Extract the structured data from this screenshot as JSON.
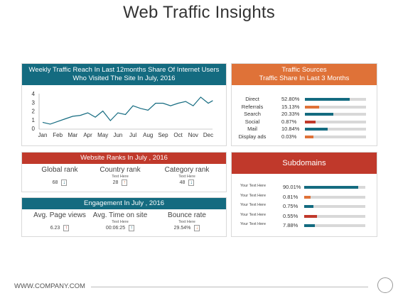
{
  "page": {
    "title": "Web Traffic Insights",
    "footer": "WWW.COMPANY.COM"
  },
  "colors": {
    "teal": "#146b80",
    "red": "#c0392b",
    "orange": "#df7238",
    "track": "#d8d8d8"
  },
  "weekly": {
    "header_line1": "Weekly Traffic Reach In Last 12months Share Of Internet Users",
    "header_line2": "Who Visited The Site In July, 2016"
  },
  "chart_data": {
    "type": "line",
    "categories": [
      "Jan",
      "Feb",
      "Mar",
      "Apr",
      "May",
      "Jun",
      "Jul",
      "Aug",
      "Sep",
      "Oct",
      "Nov",
      "Dec"
    ],
    "x": [
      0,
      0.5,
      1,
      1.5,
      2,
      2.5,
      3,
      3.5,
      4,
      4.5,
      5,
      5.5,
      6,
      6.5,
      7,
      7.5,
      8,
      8.5,
      9,
      9.5,
      10,
      10.5,
      11,
      11.3
    ],
    "values": [
      0.7,
      0.5,
      0.8,
      1.1,
      1.4,
      1.5,
      1.8,
      1.3,
      2.0,
      0.9,
      1.8,
      1.6,
      2.6,
      2.3,
      2.1,
      2.9,
      2.9,
      2.6,
      2.9,
      3.1,
      2.6,
      3.6,
      2.9,
      3.2
    ],
    "ylim": [
      0,
      4
    ],
    "yticks": [
      "0",
      "1",
      "2",
      "3",
      "4"
    ],
    "title": "",
    "xlabel": "",
    "ylabel": "",
    "grid": false
  },
  "ranks": {
    "header": "Website Ranks In July , 2016",
    "items": [
      {
        "label": "Global rank",
        "note": "",
        "value": "68",
        "arrow": "down"
      },
      {
        "label": "Country rank",
        "note": "Text Here",
        "value": "28",
        "arrow": "up"
      },
      {
        "label": "Category rank",
        "note": "Text Here",
        "value": "48",
        "arrow": "down"
      }
    ]
  },
  "engagement": {
    "header": "Engagement In July , 2016",
    "items": [
      {
        "label": "Avg. Page views",
        "note": "",
        "value": "6.23",
        "arrow": "up"
      },
      {
        "label": "Avg. Time on site",
        "note": "Text Here",
        "value": "00:06:25",
        "arrow": "up"
      },
      {
        "label": "Bounce rate",
        "note": "Text Here",
        "value": "29.54%",
        "arrow": "down"
      }
    ]
  },
  "sources": {
    "header_line1": "Traffic Sources",
    "header_line2": "Traffic Share In Last 3 Months",
    "items": [
      {
        "label": "Direct",
        "pct": "52.80%",
        "fill": 0.73,
        "color": "#146b80"
      },
      {
        "label": "Referrals",
        "pct": "15.13%",
        "fill": 0.23,
        "color": "#df7238"
      },
      {
        "label": "Search",
        "pct": "20.33%",
        "fill": 0.47,
        "color": "#146b80"
      },
      {
        "label": "Social",
        "pct": "0.87%",
        "fill": 0.17,
        "color": "#c0392b"
      },
      {
        "label": "Mail",
        "pct": "10.84%",
        "fill": 0.37,
        "color": "#146b80"
      },
      {
        "label": "Display ads",
        "pct": "0.03%",
        "fill": 0.14,
        "color": "#df7238"
      }
    ]
  },
  "subdomains": {
    "header": "Subdomains",
    "items": [
      {
        "label": "Your Text Here",
        "pct": "90.01%",
        "fill": 0.88,
        "color": "#146b80"
      },
      {
        "label": "Your Text Here",
        "pct": "0.81%",
        "fill": 0.11,
        "color": "#df7238"
      },
      {
        "label": "Your Text Here",
        "pct": "0.75%",
        "fill": 0.15,
        "color": "#146b80"
      },
      {
        "label": "Your Text Here",
        "pct": "0.55%",
        "fill": 0.21,
        "color": "#c0392b"
      },
      {
        "label": "Your Text Here",
        "pct": "7.88%",
        "fill": 0.18,
        "color": "#146b80"
      }
    ]
  }
}
